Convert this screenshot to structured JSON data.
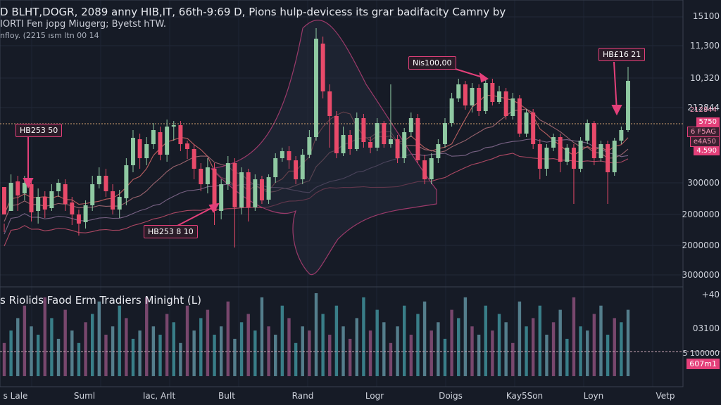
{
  "header": {
    "title": "D BLHT,DOGR, 2089 anny HIB,IT, 66th-9:69 D, Pions hulp-devicess its grar badifacity Camny by",
    "subtitle": "IORTI Fen jopg Miugerg; Byetst hTW.",
    "meta": "nfloy. (2215 ısm  ltn 00 14"
  },
  "volume_panel": {
    "title": "s Riolids Faod Erm Tradiers Minight  (L)"
  },
  "chart_data": {
    "type": "candlestick",
    "price_axis_labels": [
      "15100",
      "11,300",
      "10,320",
      "212844",
      "300000",
      "2000000",
      "2000000",
      "3000000"
    ],
    "volume_axis_labels": [
      "+40",
      "03100",
      "5 100000"
    ],
    "x_tick_labels": [
      "s Lale",
      "Suml",
      "Iac, Arlt",
      "Bult",
      "Rand",
      "Logr",
      "Doigs",
      "Kay5Son",
      "Loyn",
      "Vetp"
    ],
    "annotations": [
      "Nis100,00",
      "HB£16 21",
      "HB253 50",
      "HB253 8 10"
    ],
    "price_tags": [
      "212844",
      "5750",
      "6 F5AG",
      "e4A50",
      "4.590"
    ],
    "volume_tag": "607m1",
    "colors": {
      "up": "#8fc9a2",
      "down": "#e84a6a",
      "accent": "#e4407a",
      "bg": "#161b26"
    },
    "candles": [
      [
        266,
        305,
        330,
        318
      ],
      [
        300,
        260,
        295,
        248
      ],
      [
        258,
        278,
        300,
        250
      ],
      [
        275,
        260,
        285,
        250
      ],
      [
        262,
        302,
        315,
        255
      ],
      [
        300,
        280,
        318,
        268
      ],
      [
        280,
        298,
        310,
        272
      ],
      [
        296,
        272,
        300,
        262
      ],
      [
        272,
        260,
        280,
        255
      ],
      [
        262,
        290,
        300,
        255
      ],
      [
        288,
        305,
        320,
        280
      ],
      [
        305,
        318,
        335,
        298
      ],
      [
        316,
        292,
        325,
        285
      ],
      [
        292,
        262,
        300,
        250
      ],
      [
        262,
        250,
        268,
        238
      ],
      [
        250,
        272,
        280,
        240
      ],
      [
        272,
        298,
        305,
        262
      ],
      [
        298,
        280,
        310,
        270
      ],
      [
        282,
        235,
        292,
        225
      ],
      [
        235,
        196,
        245,
        185
      ],
      [
        198,
        225,
        240,
        190
      ],
      [
        225,
        205,
        235,
        195
      ],
      [
        205,
        185,
        212,
        175
      ],
      [
        188,
        220,
        228,
        180
      ],
      [
        220,
        180,
        230,
        170
      ],
      [
        180,
        178,
        200,
        172
      ],
      [
        178,
        205,
        215,
        172
      ],
      [
        204,
        212,
        226,
        200
      ],
      [
        212,
        240,
        255,
        205
      ],
      [
        240,
        262,
        272,
        232
      ],
      [
        262,
        238,
        275,
        225
      ],
      [
        240,
        300,
        320,
        232
      ],
      [
        300,
        262,
        312,
        255
      ],
      [
        262,
        232,
        270,
        222
      ],
      [
        232,
        295,
        352,
        225
      ],
      [
        295,
        245,
        305,
        238
      ],
      [
        245,
        295,
        315,
        240
      ],
      [
        295,
        255,
        300,
        248
      ],
      [
        255,
        285,
        290,
        250
      ],
      [
        284,
        252,
        290,
        248
      ],
      [
        252,
        225,
        260,
        218
      ],
      [
        225,
        215,
        230,
        210
      ],
      [
        215,
        228,
        240,
        208
      ],
      [
        228,
        255,
        262,
        222
      ],
      [
        255,
        220,
        262,
        212
      ],
      [
        220,
        195,
        225,
        185
      ],
      [
        195,
        55,
        200,
        40
      ],
      [
        62,
        130,
        140,
        52
      ],
      [
        130,
        165,
        210,
        120
      ],
      [
        165,
        218,
        225,
        158
      ],
      [
        218,
        192,
        222,
        180
      ],
      [
        192,
        212,
        220,
        185
      ],
      [
        212,
        168,
        215,
        160
      ],
      [
        168,
        202,
        210,
        162
      ],
      [
        202,
        210,
        218,
        195
      ],
      [
        210,
        175,
        215,
        168
      ],
      [
        175,
        205,
        210,
        172
      ],
      [
        205,
        198,
        210,
        120
      ],
      [
        198,
        225,
        232,
        192
      ],
      [
        225,
        188,
        232,
        182
      ],
      [
        188,
        168,
        195,
        160
      ],
      [
        168,
        228,
        232,
        162
      ],
      [
        228,
        255,
        262,
        220
      ],
      [
        255,
        225,
        262,
        218
      ],
      [
        225,
        205,
        232,
        198
      ],
      [
        205,
        175,
        210,
        168
      ],
      [
        175,
        140,
        180,
        132
      ],
      [
        140,
        120,
        145,
        112
      ],
      [
        120,
        150,
        156,
        115
      ],
      [
        150,
        125,
        160,
        118
      ],
      [
        125,
        158,
        165,
        120
      ],
      [
        158,
        118,
        162,
        110
      ],
      [
        118,
        145,
        150,
        112
      ],
      [
        145,
        130,
        148,
        122
      ],
      [
        130,
        165,
        170,
        125
      ],
      [
        165,
        140,
        170,
        132
      ],
      [
        140,
        190,
        195,
        135
      ],
      [
        190,
        160,
        195,
        155
      ],
      [
        160,
        205,
        212,
        155
      ],
      [
        205,
        240,
        255,
        198
      ],
      [
        240,
        210,
        250,
        205
      ],
      [
        210,
        195,
        215,
        190
      ],
      [
        195,
        230,
        245,
        190
      ],
      [
        230,
        210,
        235,
        205
      ],
      [
        210,
        240,
        290,
        205
      ],
      [
        240,
        200,
        245,
        195
      ],
      [
        200,
        175,
        205,
        170
      ],
      [
        175,
        225,
        235,
        172
      ],
      [
        225,
        205,
        230,
        200
      ],
      [
        205,
        245,
        290,
        200
      ],
      [
        245,
        200,
        250,
        196
      ],
      [
        200,
        185,
        205,
        180
      ],
      [
        185,
        115,
        188,
        95
      ]
    ],
    "volume": [
      40,
      55,
      70,
      85,
      60,
      50,
      95,
      70,
      45,
      80,
      55,
      40,
      65,
      75,
      90,
      50,
      60,
      85,
      70,
      45,
      55,
      95,
      60,
      50,
      75,
      65,
      40,
      85,
      55,
      70,
      80,
      50,
      60,
      90,
      45,
      65,
      75,
      55,
      95,
      60,
      50,
      85,
      70,
      40,
      60,
      55,
      100,
      75,
      50,
      85,
      60,
      45,
      70,
      95,
      55,
      80,
      65,
      40,
      60,
      85,
      50,
      75,
      90,
      55,
      65,
      45,
      80,
      70,
      95,
      60,
      50,
      85,
      55,
      75,
      65,
      40,
      90,
      60,
      70,
      85,
      50,
      65,
      80,
      45,
      95,
      60,
      55,
      75,
      85,
      50,
      70,
      65,
      80
    ]
  }
}
